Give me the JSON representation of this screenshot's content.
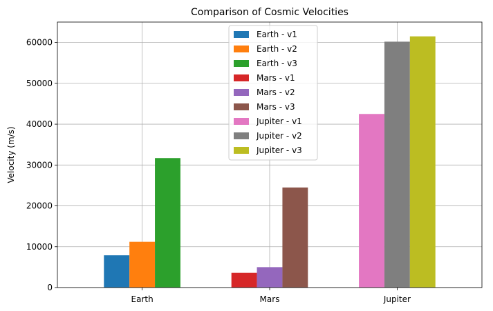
{
  "chart_data": {
    "type": "bar",
    "title": "Comparison of Cosmic Velocities",
    "xlabel": "",
    "ylabel": "Velocity (m/s)",
    "categories": [
      "Earth",
      "Mars",
      "Jupiter"
    ],
    "ylim": [
      0,
      65000
    ],
    "yticks": [
      0,
      10000,
      20000,
      30000,
      40000,
      50000,
      60000
    ],
    "grid": true,
    "legend_position": "top-center",
    "series": [
      {
        "name": "Earth - v1",
        "color": "#1f77b4",
        "values": [
          7900,
          0,
          0
        ]
      },
      {
        "name": "Earth - v2",
        "color": "#ff7f0e",
        "values": [
          11200,
          0,
          0
        ]
      },
      {
        "name": "Earth - v3",
        "color": "#2ca02c",
        "values": [
          31700,
          0,
          0
        ]
      },
      {
        "name": "Mars - v1",
        "color": "#d62728",
        "values": [
          0,
          3600,
          0
        ]
      },
      {
        "name": "Mars - v2",
        "color": "#9467bd",
        "values": [
          0,
          5000,
          0
        ]
      },
      {
        "name": "Mars - v3",
        "color": "#8c564b",
        "values": [
          0,
          24500,
          0
        ]
      },
      {
        "name": "Jupiter - v1",
        "color": "#e377c2",
        "values": [
          0,
          0,
          42500
        ]
      },
      {
        "name": "Jupiter - v2",
        "color": "#7f7f7f",
        "values": [
          0,
          0,
          60200
        ]
      },
      {
        "name": "Jupiter - v3",
        "color": "#bcbd22",
        "values": [
          0,
          0,
          61500
        ]
      }
    ]
  }
}
